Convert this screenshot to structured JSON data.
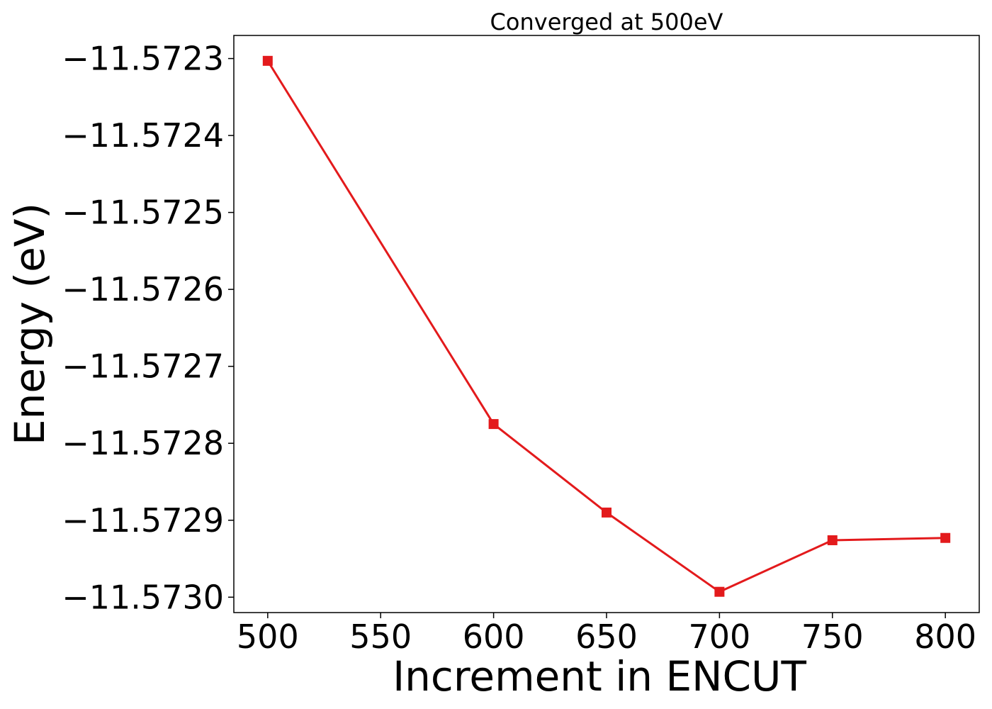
{
  "chart_data": {
    "type": "line",
    "title": "Converged at 500eV",
    "xlabel": "Increment in ENCUT",
    "ylabel": "Energy (eV)",
    "xlim": [
      485,
      815
    ],
    "ylim": [
      -11.57302,
      -11.57227
    ],
    "xticks": [
      500,
      550,
      600,
      650,
      700,
      750,
      800
    ],
    "xtick_labels": [
      "500",
      "550",
      "600",
      "650",
      "700",
      "750",
      "800"
    ],
    "yticks": [
      -11.5723,
      -11.5724,
      -11.5725,
      -11.5726,
      -11.5727,
      -11.5728,
      -11.5729,
      -11.573
    ],
    "ytick_labels": [
      "−11.5723",
      "−11.5724",
      "−11.5725",
      "−11.5726",
      "−11.5727",
      "−11.5728",
      "−11.5729",
      "−11.5730"
    ],
    "grid": false,
    "series": [
      {
        "color": "#e31a1c",
        "marker": "square",
        "x": [
          500,
          600,
          650,
          700,
          750,
          800
        ],
        "y": [
          -11.572303,
          -11.572775,
          -11.57289,
          -11.572993,
          -11.572926,
          -11.572923
        ]
      }
    ]
  }
}
